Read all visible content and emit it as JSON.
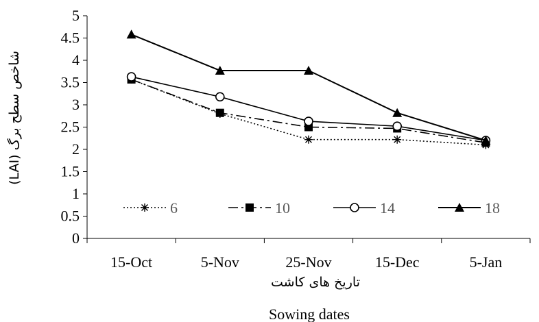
{
  "chart_data": {
    "type": "line",
    "categories": [
      "15-Oct",
      "5-Nov",
      "25-Nov",
      "15-Dec",
      "5-Jan"
    ],
    "xlabel_fa": "تاریخ های کاشت",
    "xlabel": "Sowing dates",
    "ylabel": "شاخص سطح برگ (LAI)",
    "ylim": [
      0,
      5
    ],
    "yticks": [
      0,
      0.5,
      1,
      1.5,
      2,
      2.5,
      3,
      3.5,
      4,
      4.5,
      5
    ],
    "ytick_labels": [
      "0",
      "0.5",
      "1",
      "1.5",
      "2",
      "2.5",
      "3",
      "3.5",
      "4",
      "4.5",
      "5"
    ],
    "grid": false,
    "legend_position": "inside-bottom",
    "series": [
      {
        "name": "6",
        "values": [
          3.57,
          2.8,
          2.22,
          2.22,
          2.1
        ],
        "color": "#000000",
        "dash": "dotted",
        "marker": "asterisk"
      },
      {
        "name": "10",
        "values": [
          3.57,
          2.82,
          2.5,
          2.47,
          2.15
        ],
        "color": "#000000",
        "dash": "dashdot",
        "marker": "square"
      },
      {
        "name": "14",
        "values": [
          3.63,
          3.18,
          2.63,
          2.52,
          2.2
        ],
        "color": "#000000",
        "dash": "solid",
        "marker": "circle-open"
      },
      {
        "name": "18",
        "values": [
          4.58,
          3.77,
          3.77,
          2.82,
          2.2
        ],
        "color": "#000000",
        "dash": "solid",
        "marker": "triangle"
      }
    ]
  }
}
